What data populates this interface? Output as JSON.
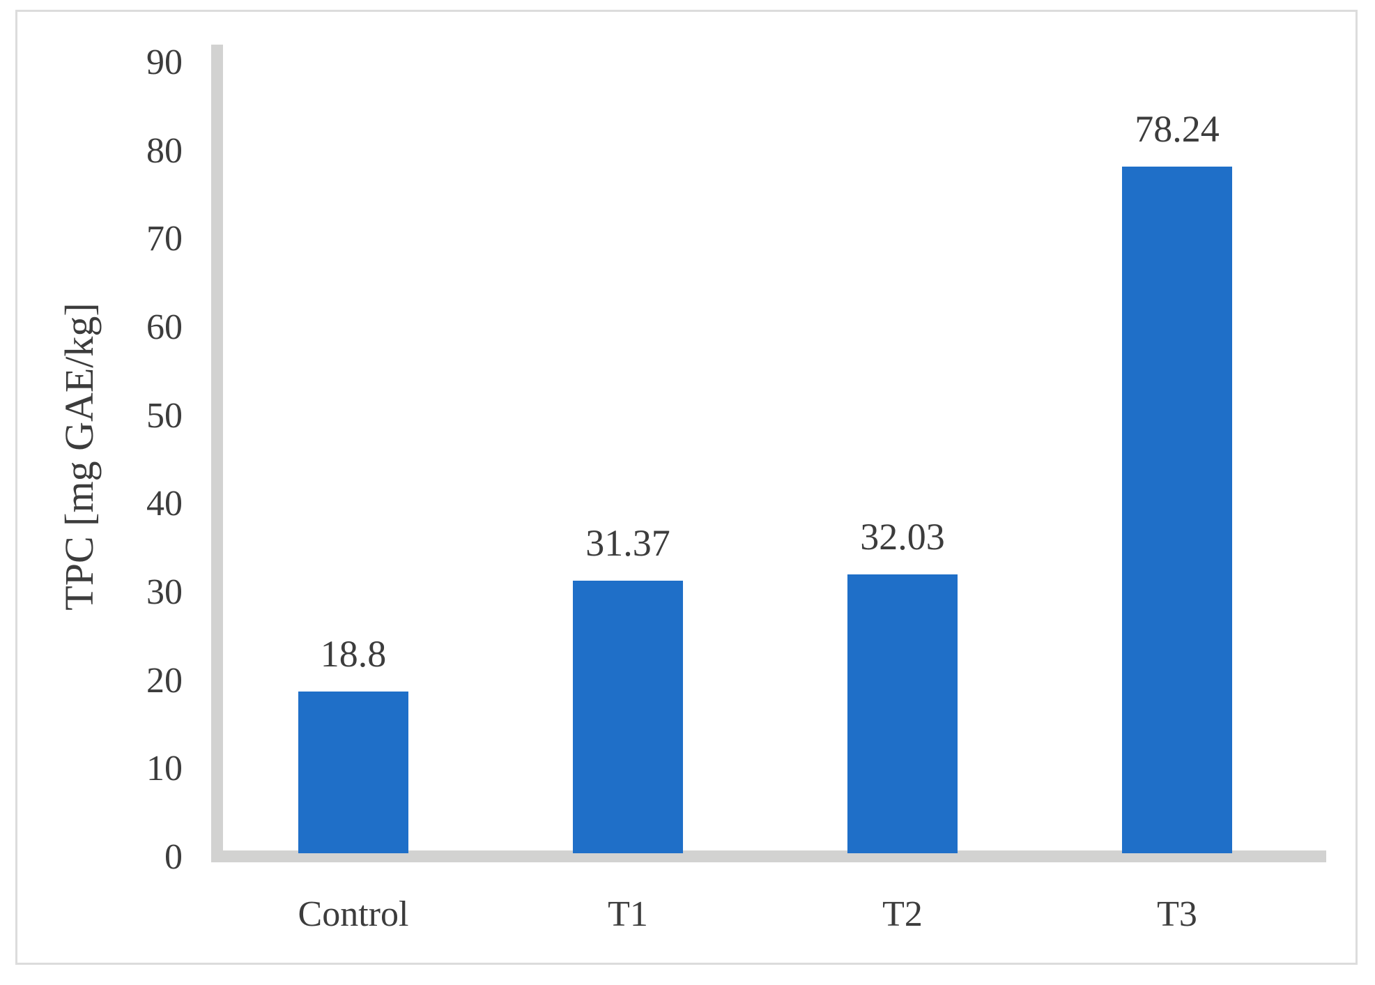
{
  "chart_data": {
    "type": "bar",
    "title": "",
    "xlabel": "",
    "ylabel": "TPC [mg GAE/kg]",
    "categories": [
      "Control",
      "T1",
      "T2",
      "T3"
    ],
    "values": [
      18.8,
      31.37,
      32.03,
      78.24
    ],
    "value_labels": [
      "18.8",
      "31.37",
      "32.03",
      "78.24"
    ],
    "series": [
      {
        "name": "TPC",
        "values": [
          18.8,
          31.37,
          32.03,
          78.24
        ]
      }
    ],
    "ylim": [
      0,
      90
    ],
    "yticks": [
      0,
      10,
      20,
      30,
      40,
      50,
      60,
      70,
      80,
      90
    ],
    "ytick_labels": [
      "0",
      "10",
      "20",
      "30",
      "40",
      "50",
      "60",
      "70",
      "80",
      "90"
    ],
    "grid": false,
    "legend_position": "none",
    "data_labels_shown": true,
    "colors": {
      "bar_fill": "#1f6fc8",
      "axis_line": "#d2d2d1",
      "frame_border": "#dcdcdc",
      "text": "#3c3c3c",
      "background": "#ffffff"
    }
  }
}
